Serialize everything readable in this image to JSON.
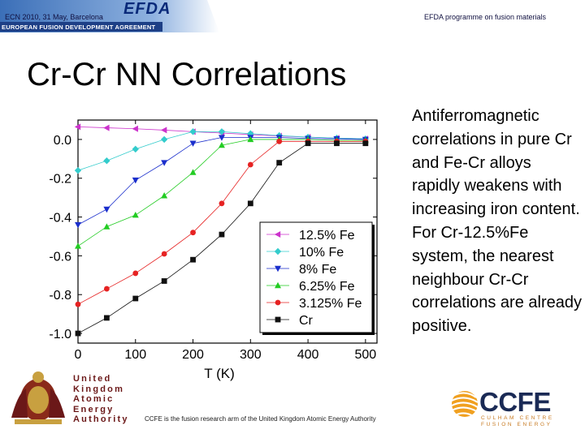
{
  "header": {
    "left": "ECN 2010, 31 May, Barcelona",
    "right": "EFDA programme on fusion materials",
    "logo_text": "EFDA",
    "logo_subtitle": "EUROPEAN FUSION DEVELOPMENT AGREEMENT"
  },
  "slide": {
    "title": "Cr-Cr NN Correlations",
    "body": "Antiferromagnetic correlations in pure Cr and Fe-Cr alloys rapidly weakens with increasing iron content. For Cr-12.5%Fe system, the nearest neighbour Cr-Cr correlations are already positive."
  },
  "chart_data": {
    "type": "line",
    "xlabel": "T (K)",
    "ylabel": "",
    "xlim": [
      0,
      520
    ],
    "ylim": [
      -1.05,
      0.1
    ],
    "xticks": [
      0,
      100,
      200,
      300,
      400,
      500
    ],
    "yticks": [
      0.0,
      -0.2,
      -0.4,
      -0.6,
      -0.8,
      -1.0
    ],
    "ytick_labels": [
      "0.0",
      "-0.2",
      "-0.4",
      "-0.6",
      "-0.8",
      "-1.0"
    ],
    "legend_position": "center-right",
    "x": [
      0,
      50,
      100,
      150,
      200,
      250,
      300,
      350,
      400,
      450,
      500
    ],
    "series": [
      {
        "name": "12.5% Fe",
        "color": "#cc33cc",
        "marker": "triangle-left",
        "values": [
          0.065,
          0.06,
          0.055,
          0.048,
          0.04,
          0.033,
          0.025,
          0.018,
          0.012,
          0.007,
          0.003
        ]
      },
      {
        "name": "10% Fe",
        "color": "#33cccc",
        "marker": "diamond",
        "values": [
          -0.16,
          -0.11,
          -0.05,
          0.0,
          0.04,
          0.04,
          0.03,
          0.02,
          0.012,
          0.007,
          0.003
        ]
      },
      {
        "name": "8% Fe",
        "color": "#1a2ecc",
        "marker": "triangle-down",
        "values": [
          -0.44,
          -0.36,
          -0.21,
          -0.12,
          -0.02,
          0.01,
          0.01,
          0.01,
          0.005,
          0.003,
          0.0
        ]
      },
      {
        "name": "6.25% Fe",
        "color": "#22cc22",
        "marker": "triangle-up",
        "values": [
          -0.55,
          -0.45,
          -0.39,
          -0.29,
          -0.17,
          -0.03,
          0.0,
          0.0,
          0.0,
          -0.005,
          -0.005
        ]
      },
      {
        "name": "3.125% Fe",
        "color": "#e62222",
        "marker": "circle",
        "values": [
          -0.85,
          -0.77,
          -0.69,
          -0.59,
          -0.48,
          -0.33,
          -0.13,
          -0.01,
          -0.01,
          -0.01,
          -0.01
        ]
      },
      {
        "name": "Cr",
        "color": "#111111",
        "marker": "square",
        "values": [
          -1.0,
          -0.92,
          -0.82,
          -0.73,
          -0.62,
          -0.49,
          -0.33,
          -0.12,
          -0.02,
          -0.02,
          -0.02
        ]
      }
    ]
  },
  "footer": {
    "text": "CCFE is the fusion research arm of the United Kingdom Atomic Energy Authority",
    "ukaea_lines": [
      "United",
      "Kingdom",
      "Atomic",
      "Energy",
      "Authority"
    ],
    "ccfe_name": "CCFE",
    "ccfe_sub1": "CULHAM CENTRE",
    "ccfe_sub2": "FUSION ENERGY"
  }
}
